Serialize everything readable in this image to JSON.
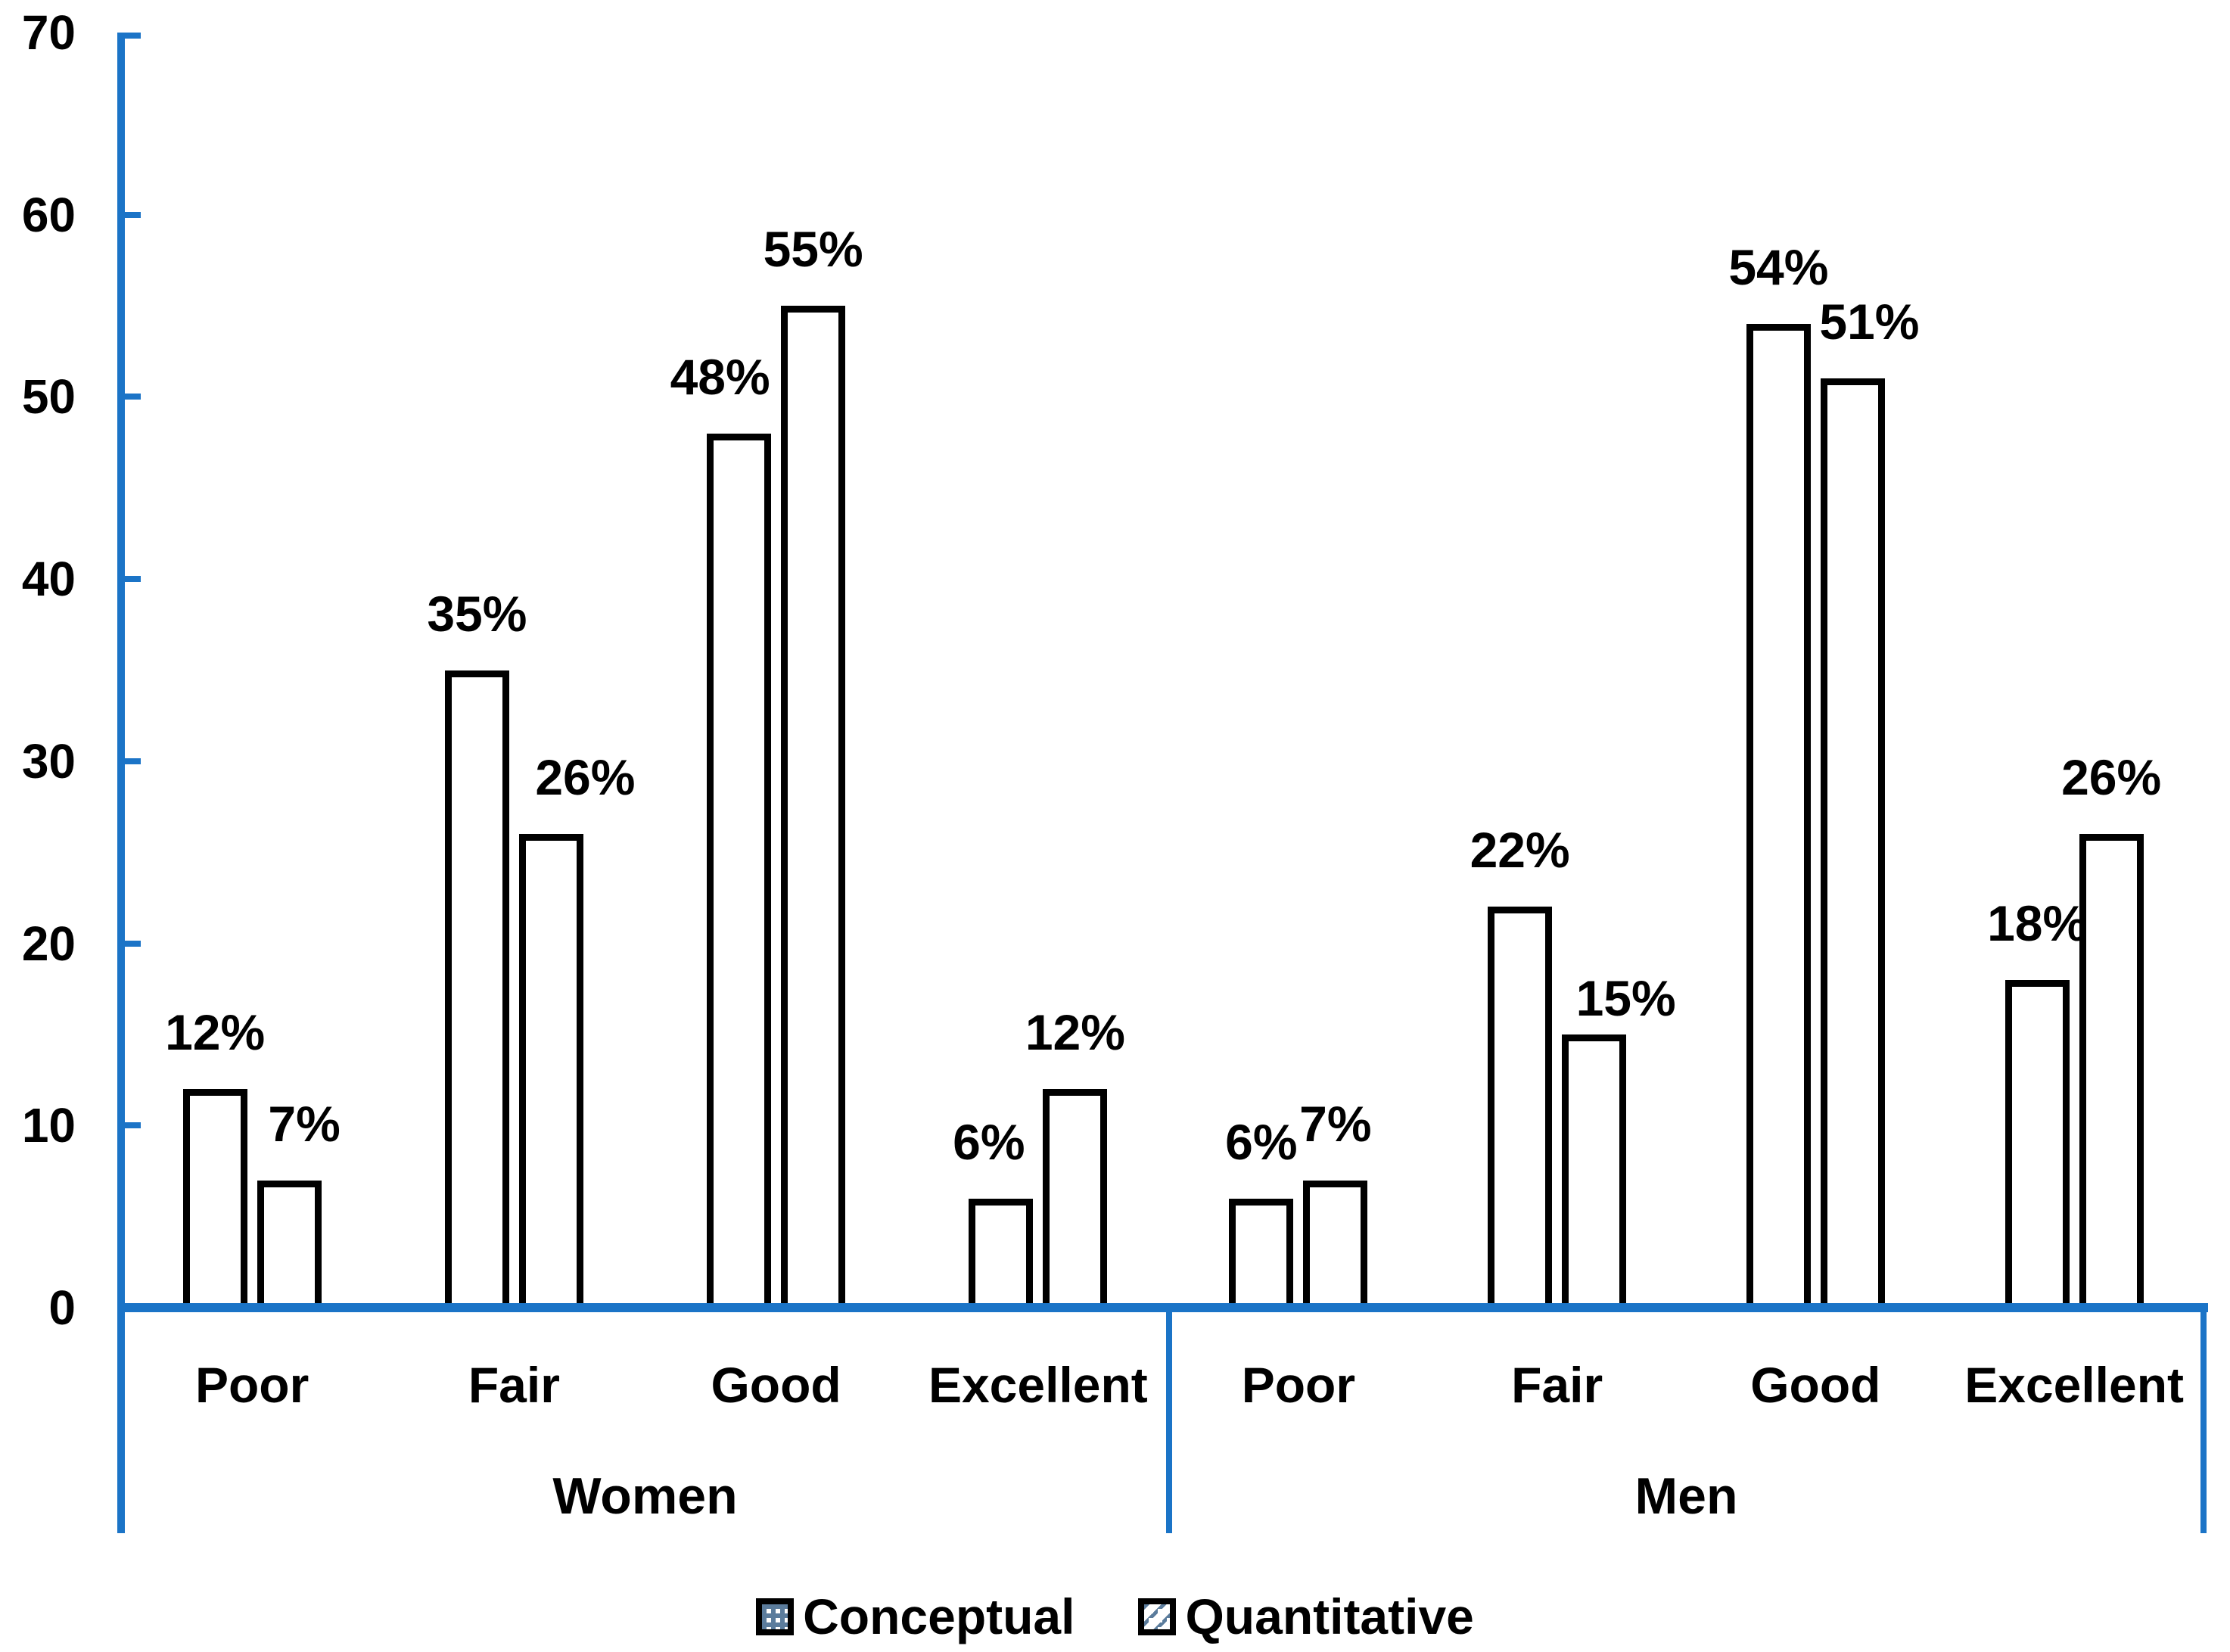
{
  "chart_data": {
    "type": "bar",
    "title": "",
    "value_suffix": "%",
    "ylim": [
      0,
      70
    ],
    "yticks": [
      "0",
      "10",
      "20",
      "30",
      "40",
      "50",
      "60",
      "70"
    ],
    "grid": false,
    "legend_position": "bottom",
    "categories": [
      "Poor",
      "Fair",
      "Good",
      "Excellent"
    ],
    "groups": [
      {
        "label": "Women",
        "color": "#F8993C",
        "series": [
          {
            "name": "Conceptual",
            "pattern": "dots",
            "values": [
              12,
              35,
              48,
              6
            ],
            "labels": [
              "12%",
              "35%",
              "48%",
              "6%"
            ]
          },
          {
            "name": "Quantitative",
            "pattern": "diagonal",
            "values": [
              7,
              26,
              55,
              12
            ],
            "labels": [
              "7%",
              "26%",
              "55%",
              "12%"
            ]
          }
        ]
      },
      {
        "label": "Men",
        "color": "#5B7C9C",
        "series": [
          {
            "name": "Conceptual",
            "pattern": "dots",
            "values": [
              6,
              22,
              54,
              18
            ],
            "labels": [
              "6%",
              "22%",
              "54%",
              "18%"
            ]
          },
          {
            "name": "Quantitative",
            "pattern": "diagonal",
            "values": [
              7,
              15,
              51,
              26
            ],
            "labels": [
              "7%",
              "15%",
              "51%",
              "26%"
            ]
          }
        ]
      }
    ],
    "legend": [
      {
        "label": "Conceptual",
        "pattern": "dots",
        "color": "#5B7C9C"
      },
      {
        "label": "Quantitative",
        "pattern": "diagonal",
        "color": "#5B7C9C"
      }
    ],
    "colors": {
      "axis": "#1B74C7",
      "text": "#000000",
      "background": "#FFFFFF",
      "women_accent": "#F8993C",
      "men_accent": "#5B7C9C"
    }
  }
}
